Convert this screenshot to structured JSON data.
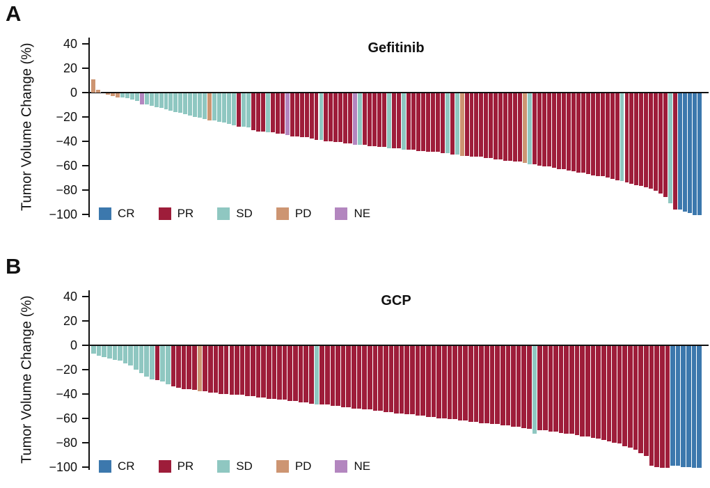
{
  "figure": {
    "kind": "waterfall-bar-figure",
    "background": "#ffffff",
    "axis_color": "#111111"
  },
  "colors": {
    "CR": "#3c78ad",
    "PR": "#9e1d3a",
    "SD": "#8fc7c1",
    "PD": "#cd9572",
    "NE": "#b386bf"
  },
  "legend": [
    "CR",
    "PR",
    "SD",
    "PD",
    "NE"
  ],
  "chart_data": [
    {
      "type": "bar",
      "subtype": "waterfall",
      "panel_label": "A",
      "title": "Gefitinib",
      "ylabel": "Tumor Volume Change (%)",
      "xlabel": "",
      "ylim": [
        -100,
        40
      ],
      "grid": false,
      "legend_position": "bottom-left",
      "legend": [
        "CR",
        "PR",
        "SD",
        "PD",
        "NE"
      ],
      "yticks": [
        {
          "label": "40",
          "value": 40
        },
        {
          "label": "20",
          "value": 20
        },
        {
          "label": "0",
          "value": 0
        },
        {
          "label": "−20",
          "value": -20
        },
        {
          "label": "−40",
          "value": -40
        },
        {
          "label": "−60",
          "value": -60
        },
        {
          "label": "−80",
          "value": -80
        },
        {
          "label": "−100",
          "value": -100
        }
      ],
      "values": [
        11,
        2,
        0,
        -1,
        -2,
        -3,
        -3,
        -4,
        -5,
        -6,
        -9,
        -9,
        -10,
        -11,
        -12,
        -13,
        -14,
        -15,
        -16,
        -17,
        -18,
        -19,
        -20,
        -21,
        -22,
        -22,
        -23,
        -24,
        -25,
        -26,
        -27,
        -27,
        -28,
        -30,
        -31,
        -31,
        -32,
        -32,
        -33,
        -33,
        -34,
        -35,
        -35,
        -36,
        -36,
        -37,
        -38,
        -38,
        -39,
        -39,
        -40,
        -40,
        -41,
        -41,
        -42,
        -42,
        -42,
        -43,
        -43,
        -44,
        -44,
        -45,
        -45,
        -45,
        -46,
        -46,
        -46,
        -47,
        -47,
        -48,
        -48,
        -48,
        -49,
        -49,
        -50,
        -50,
        -51,
        -51,
        -52,
        -52,
        -52,
        -53,
        -53,
        -54,
        -54,
        -55,
        -55,
        -56,
        -56,
        -57,
        -58,
        -58,
        -59,
        -60,
        -60,
        -61,
        -62,
        -62,
        -63,
        -64,
        -65,
        -65,
        -66,
        -67,
        -68,
        -68,
        -69,
        -70,
        -71,
        -72,
        -73,
        -74,
        -75,
        -76,
        -77,
        -78,
        -80,
        -82,
        -85,
        -90,
        -95,
        -95,
        -97,
        -98,
        -100,
        -100
      ],
      "responses": [
        "PD",
        "PD",
        "PD",
        "PD",
        "PD",
        "PD",
        "SD",
        "SD",
        "SD",
        "SD",
        "NE",
        "SD",
        "SD",
        "SD",
        "SD",
        "SD",
        "SD",
        "SD",
        "SD",
        "SD",
        "SD",
        "SD",
        "SD",
        "SD",
        "PD",
        "SD",
        "SD",
        "SD",
        "SD",
        "SD",
        "PR",
        "SD",
        "SD",
        "PR",
        "PR",
        "PR",
        "SD",
        "PR",
        "PR",
        "PR",
        "NE",
        "PR",
        "PR",
        "PR",
        "PR",
        "PR",
        "PR",
        "SD",
        "PR",
        "PR",
        "PR",
        "PR",
        "PR",
        "PR",
        "NE",
        "SD",
        "PR",
        "PR",
        "PR",
        "PR",
        "PR",
        "SD",
        "PR",
        "PR",
        "SD",
        "PR",
        "PR",
        "PR",
        "PR",
        "PR",
        "PR",
        "PR",
        "PR",
        "SD",
        "PR",
        "SD",
        "PD",
        "PR",
        "PR",
        "PR",
        "PR",
        "PR",
        "PR",
        "PR",
        "PR",
        "PR",
        "PR",
        "PR",
        "PR",
        "PD",
        "SD",
        "PR",
        "PR",
        "PR",
        "PR",
        "PR",
        "PR",
        "PR",
        "PR",
        "PR",
        "PR",
        "PR",
        "PR",
        "PR",
        "PR",
        "PR",
        "PR",
        "PR",
        "PR",
        "SD",
        "PR",
        "PR",
        "PR",
        "PR",
        "PR",
        "PR",
        "PR",
        "PR",
        "PR",
        "SD",
        "PR",
        "CR",
        "CR",
        "CR",
        "CR",
        "CR"
      ]
    },
    {
      "type": "bar",
      "subtype": "waterfall",
      "panel_label": "B",
      "title": "GCP",
      "ylabel": "Tumor Volume Change (%)",
      "xlabel": "",
      "ylim": [
        -100,
        40
      ],
      "grid": false,
      "legend_position": "bottom-left",
      "legend": [
        "CR",
        "PR",
        "SD",
        "PD",
        "NE"
      ],
      "yticks": [
        {
          "label": "40",
          "value": 40
        },
        {
          "label": "20",
          "value": 20
        },
        {
          "label": "0",
          "value": 0
        },
        {
          "label": "−20",
          "value": -20
        },
        {
          "label": "−40",
          "value": -40
        },
        {
          "label": "−60",
          "value": -60
        },
        {
          "label": "−80",
          "value": -80
        },
        {
          "label": "−100",
          "value": -100
        }
      ],
      "values": [
        -6,
        -8,
        -9,
        -10,
        -11,
        -12,
        -14,
        -16,
        -19,
        -22,
        -25,
        -27,
        -28,
        -29,
        -31,
        -33,
        -34,
        -35,
        -35,
        -36,
        -37,
        -37,
        -38,
        -38,
        -39,
        -39,
        -40,
        -40,
        -40,
        -41,
        -41,
        -42,
        -42,
        -43,
        -43,
        -44,
        -44,
        -45,
        -45,
        -46,
        -46,
        -47,
        -48,
        -48,
        -48,
        -49,
        -49,
        -50,
        -50,
        -51,
        -51,
        -52,
        -52,
        -53,
        -53,
        -54,
        -54,
        -55,
        -55,
        -56,
        -56,
        -57,
        -57,
        -58,
        -58,
        -59,
        -59,
        -60,
        -60,
        -61,
        -61,
        -62,
        -62,
        -63,
        -63,
        -64,
        -64,
        -65,
        -65,
        -66,
        -66,
        -67,
        -68,
        -72,
        -69,
        -69,
        -70,
        -70,
        -71,
        -72,
        -72,
        -73,
        -74,
        -74,
        -75,
        -76,
        -77,
        -78,
        -79,
        -80,
        -82,
        -83,
        -85,
        -88,
        -90,
        -98,
        -99,
        -100,
        -100,
        -98,
        -98,
        -99,
        -99,
        -100,
        -100
      ],
      "responses": [
        "SD",
        "SD",
        "SD",
        "SD",
        "SD",
        "SD",
        "SD",
        "SD",
        "SD",
        "SD",
        "SD",
        "SD",
        "PR",
        "SD",
        "SD",
        "PR",
        "PR",
        "PR",
        "PR",
        "PR",
        "PD",
        "PR",
        "PR",
        "PR",
        "PR",
        "PR",
        "PR",
        "PR",
        "PR",
        "PR",
        "PR",
        "PR",
        "PR",
        "PR",
        "PR",
        "PR",
        "PR",
        "PR",
        "PR",
        "PR",
        "PR",
        "PR",
        "SD",
        "PR",
        "PR",
        "PR",
        "PR",
        "PR",
        "PR",
        "PR",
        "PR",
        "PR",
        "PR",
        "PR",
        "PR",
        "PR",
        "PR",
        "PR",
        "PR",
        "PR",
        "PR",
        "PR",
        "PR",
        "PR",
        "PR",
        "PR",
        "PR",
        "PR",
        "PR",
        "PR",
        "PR",
        "PR",
        "PR",
        "PR",
        "PR",
        "PR",
        "PR",
        "PR",
        "PR",
        "PR",
        "PR",
        "PR",
        "PR",
        "SD",
        "PR",
        "PR",
        "PR",
        "PR",
        "PR",
        "PR",
        "PR",
        "PR",
        "PR",
        "PR",
        "PR",
        "PR",
        "PR",
        "PR",
        "PR",
        "PR",
        "PR",
        "PR",
        "PR",
        "PR",
        "PR",
        "PR",
        "PR",
        "PR",
        "PR",
        "CR",
        "CR",
        "CR",
        "CR",
        "CR",
        "CR"
      ]
    }
  ]
}
